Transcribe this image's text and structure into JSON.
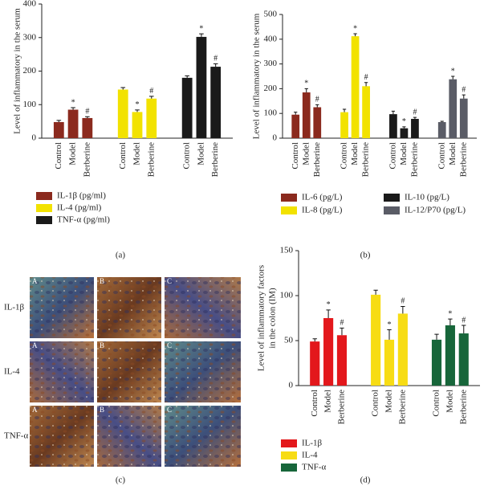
{
  "chart_data": [
    {
      "type": "bar",
      "panel_label": "(a)",
      "ylabel": [
        "Level of inflammatory in the serum"
      ],
      "ylim": [
        0,
        400
      ],
      "yticks": [
        0,
        100,
        200,
        300,
        400
      ],
      "series": [
        {
          "name": "IL-1β (pg/ml)",
          "color": "#8b2a1e",
          "categories": [
            "Control",
            "Model",
            "Berberine"
          ],
          "values": [
            48,
            85,
            60
          ],
          "errors": [
            5,
            6,
            4
          ],
          "annotations": [
            null,
            "*",
            "#"
          ]
        },
        {
          "name": "IL-4 (pg/ml)",
          "color": "#f2e200",
          "categories": [
            "Control",
            "Model",
            "Berberine"
          ],
          "values": [
            145,
            78,
            118
          ],
          "errors": [
            6,
            6,
            7
          ],
          "annotations": [
            null,
            "*",
            "#"
          ]
        },
        {
          "name": "TNF-α (pg/ml)",
          "color": "#1a1a1a",
          "categories": [
            "Control",
            "Model",
            "Berberine"
          ],
          "values": [
            180,
            302,
            213
          ],
          "errors": [
            6,
            9,
            9
          ],
          "annotations": [
            null,
            "*",
            "#"
          ]
        }
      ]
    },
    {
      "type": "bar",
      "panel_label": "(b)",
      "ylabel": [
        "Level of inflammatory in the serum"
      ],
      "ylim": [
        0,
        500
      ],
      "yticks": [
        0,
        100,
        200,
        300,
        400,
        500
      ],
      "series": [
        {
          "name": "IL-6 (pg/L)",
          "color": "#8b2a1e",
          "categories": [
            "Control",
            "Model",
            "Berberine"
          ],
          "values": [
            95,
            185,
            125
          ],
          "errors": [
            10,
            15,
            10
          ],
          "annotations": [
            null,
            "*",
            "#"
          ]
        },
        {
          "name": "IL-8 (pg/L)",
          "color": "#f2e200",
          "categories": [
            "Control",
            "Model",
            "Berberine"
          ],
          "values": [
            105,
            412,
            210
          ],
          "errors": [
            12,
            10,
            15
          ],
          "annotations": [
            null,
            "*",
            "#"
          ]
        },
        {
          "name": "IL-10 (pg/L)",
          "color": "#1a1a1a",
          "categories": [
            "Control",
            "Model",
            "Berberine"
          ],
          "values": [
            97,
            40,
            78
          ],
          "errors": [
            12,
            6,
            6
          ],
          "annotations": [
            null,
            "*",
            "#"
          ]
        },
        {
          "name": "IL-12/P70 (pg/L)",
          "color": "#5a5c66",
          "categories": [
            "Control",
            "Model",
            "Berberine"
          ],
          "values": [
            65,
            238,
            160
          ],
          "errors": [
            3,
            12,
            15
          ],
          "annotations": [
            null,
            "*",
            "#"
          ]
        }
      ]
    },
    {
      "type": "bar",
      "panel_label": "(d)",
      "ylabel": [
        "Level of inflammatory factors",
        "in the colon (IM)"
      ],
      "ylim": [
        0,
        150
      ],
      "yticks": [
        0,
        50,
        100,
        150
      ],
      "series": [
        {
          "name": "IL-1β",
          "color": "#e3181c",
          "categories": [
            "Control",
            "Model",
            "Berberine"
          ],
          "values": [
            49,
            75,
            56
          ],
          "errors": [
            3,
            9,
            8
          ],
          "annotations": [
            null,
            "*",
            "#"
          ]
        },
        {
          "name": "IL-4",
          "color": "#f7dc14",
          "categories": [
            "Control",
            "Model",
            "Berberine"
          ],
          "values": [
            101,
            51,
            80
          ],
          "errors": [
            5,
            11,
            8
          ],
          "annotations": [
            null,
            "*",
            "#"
          ]
        },
        {
          "name": "TNF-α",
          "color": "#17663a",
          "categories": [
            "Control",
            "Model",
            "Berberine"
          ],
          "values": [
            51,
            67,
            58
          ],
          "errors": [
            6,
            7,
            9
          ],
          "annotations": [
            null,
            "*",
            "#"
          ]
        }
      ]
    }
  ],
  "image_panel": {
    "panel_label": "(c)",
    "row_labels": [
      "IL-1β",
      "IL-4",
      "TNF-α"
    ],
    "tile_letters": [
      "A",
      "B",
      "C"
    ]
  }
}
